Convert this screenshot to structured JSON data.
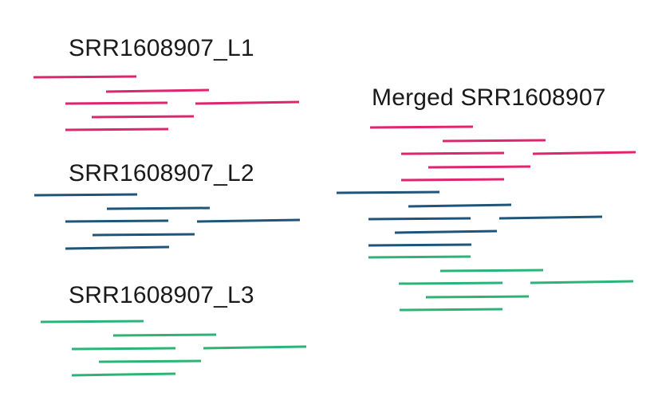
{
  "colors": {
    "L1": "#e0256f",
    "L2": "#1f5579",
    "L3": "#2db378",
    "text": "#1a1a1a"
  },
  "groups": {
    "L1_label": "SRR1608907_L1",
    "L2_label": "SRR1608907_L2",
    "L3_label": "SRR1608907_L3",
    "merged_label": "Merged SRR1608907"
  }
}
